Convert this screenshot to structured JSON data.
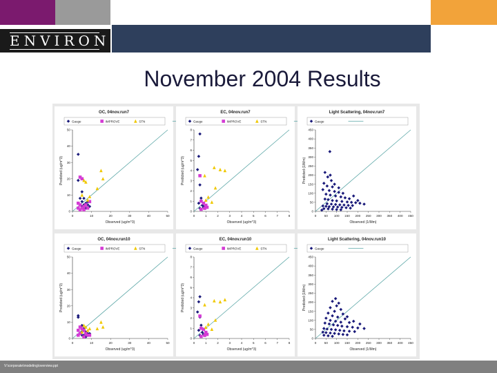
{
  "slide": {
    "logo": "ENVIRON",
    "title": "November 2004 Results",
    "footer": "V:\\corporate\\modeling\\overview.ppt"
  },
  "colors": {
    "gauge": "#1a1a7a",
    "improve": "#d43bd4",
    "stn": "#f0c800",
    "one_to_one": "#5aa6a6"
  },
  "chart_data": [
    {
      "type": "scatter",
      "title": "OC, 04nov.run7",
      "xlabel": "Observed (ug/m^3)",
      "ylabel": "Predicted (ug/m^3)",
      "xlim": [
        0,
        50
      ],
      "ylim": [
        0,
        50
      ],
      "xticks": [
        0,
        10,
        20,
        30,
        40,
        50
      ],
      "yticks": [
        0,
        10,
        20,
        30,
        40,
        50
      ],
      "legend_position": "top",
      "series": [
        {
          "name": "Gauge",
          "marker": "diamond",
          "color": "#1a1a7a",
          "points": [
            [
              3,
              35
            ],
            [
              3,
              19
            ],
            [
              5,
              12
            ],
            [
              4,
              8
            ],
            [
              6,
              8
            ],
            [
              5,
              6
            ],
            [
              7,
              5
            ],
            [
              8,
              4
            ],
            [
              5,
              3
            ],
            [
              6,
              2
            ],
            [
              7,
              2
            ],
            [
              9,
              3
            ],
            [
              8,
              6
            ],
            [
              4,
              4
            ],
            [
              6,
              4
            ]
          ]
        },
        {
          "name": "IMPROVE",
          "marker": "square",
          "color": "#d43bd4",
          "points": [
            [
              4,
              21
            ],
            [
              5,
              20
            ],
            [
              3,
              5
            ],
            [
              4,
              4
            ],
            [
              6,
              3
            ],
            [
              5,
              2
            ],
            [
              7,
              4
            ],
            [
              8,
              2
            ],
            [
              3,
              2
            ],
            [
              6,
              1
            ],
            [
              9,
              6
            ],
            [
              4,
              1
            ]
          ]
        },
        {
          "name": "STN",
          "marker": "triangle",
          "color": "#f0c800",
          "points": [
            [
              15,
              25
            ],
            [
              16,
              20
            ],
            [
              13,
              14
            ],
            [
              6,
              19
            ],
            [
              7,
              18
            ],
            [
              9,
              9
            ],
            [
              8,
              7
            ],
            [
              5,
              10
            ]
          ]
        }
      ],
      "one_to_one": true
    },
    {
      "type": "scatter",
      "title": "EC, 04nov.run7",
      "xlabel": "Observed (ug/m^3)",
      "ylabel": "Predicted (ug/m^3)",
      "xlim": [
        0,
        8
      ],
      "ylim": [
        0,
        8
      ],
      "xticks": [
        0,
        1,
        2,
        3,
        4,
        5,
        6,
        7,
        8
      ],
      "yticks": [
        0,
        1,
        2,
        3,
        4,
        5,
        6,
        7,
        8
      ],
      "legend_position": "top",
      "series": [
        {
          "name": "Gauge",
          "marker": "diamond",
          "color": "#1a1a7a",
          "points": [
            [
              0.5,
              7.6
            ],
            [
              0.4,
              5.4
            ],
            [
              0.3,
              4.1
            ],
            [
              0.5,
              2.6
            ],
            [
              0.6,
              1.3
            ],
            [
              0.4,
              0.8
            ],
            [
              0.7,
              0.6
            ],
            [
              0.8,
              0.4
            ],
            [
              0.5,
              0.3
            ],
            [
              0.9,
              0.5
            ]
          ]
        },
        {
          "name": "IMPROVE",
          "marker": "square",
          "color": "#d43bd4",
          "points": [
            [
              0.5,
              3.5
            ],
            [
              0.6,
              1.0
            ],
            [
              0.8,
              0.8
            ],
            [
              1.0,
              0.6
            ],
            [
              0.9,
              0.3
            ],
            [
              1.1,
              0.4
            ],
            [
              0.6,
              0.2
            ]
          ]
        },
        {
          "name": "STN",
          "marker": "triangle",
          "color": "#f0c800",
          "points": [
            [
              1.7,
              4.3
            ],
            [
              2.2,
              4.1
            ],
            [
              2.6,
              4.0
            ],
            [
              0.9,
              3.5
            ],
            [
              1.8,
              2.3
            ],
            [
              1.2,
              1.4
            ],
            [
              1.0,
              1.1
            ],
            [
              1.5,
              0.9
            ]
          ]
        }
      ],
      "one_to_one": true
    },
    {
      "type": "scatter",
      "title": "Light Scattering, 04nov.run7",
      "xlabel": "Observed (1/Mm)",
      "ylabel": "Predicted (1/Mm)",
      "xlim": [
        0,
        450
      ],
      "ylim": [
        0,
        450
      ],
      "xticks": [
        0,
        50,
        100,
        150,
        200,
        250,
        300,
        350,
        400,
        450
      ],
      "yticks": [
        0,
        50,
        100,
        150,
        200,
        250,
        300,
        350,
        400,
        450
      ],
      "legend_position": "top",
      "series": [
        {
          "name": "Gauge",
          "marker": "diamond",
          "color": "#1a1a7a",
          "points": [
            [
              68,
              330
            ],
            [
              45,
              215
            ],
            [
              58,
              190
            ],
            [
              75,
              170
            ],
            [
              40,
              155
            ],
            [
              55,
              140
            ],
            [
              80,
              135
            ],
            [
              35,
              120
            ],
            [
              65,
              115
            ],
            [
              90,
              110
            ],
            [
              110,
              105
            ],
            [
              130,
              100
            ],
            [
              50,
              95
            ],
            [
              70,
              90
            ],
            [
              95,
              85
            ],
            [
              120,
              80
            ],
            [
              140,
              75
            ],
            [
              160,
              70
            ],
            [
              45,
              68
            ],
            [
              60,
              65
            ],
            [
              80,
              60
            ],
            [
              100,
              58
            ],
            [
              125,
              55
            ],
            [
              150,
              52
            ],
            [
              170,
              50
            ],
            [
              190,
              48
            ],
            [
              210,
              45
            ],
            [
              55,
              42
            ],
            [
              75,
              40
            ],
            [
              95,
              38
            ],
            [
              115,
              36
            ],
            [
              135,
              35
            ],
            [
              155,
              33
            ],
            [
              175,
              32
            ],
            [
              35,
              30
            ],
            [
              50,
              28
            ],
            [
              65,
              26
            ],
            [
              85,
              25
            ],
            [
              105,
              24
            ],
            [
              125,
              22
            ],
            [
              145,
              20
            ],
            [
              165,
              18
            ],
            [
              40,
              15
            ],
            [
              60,
              14
            ],
            [
              80,
              12
            ],
            [
              100,
              10
            ],
            [
              120,
              9
            ],
            [
              30,
              7
            ],
            [
              200,
              60
            ],
            [
              230,
              40
            ],
            [
              180,
              85
            ],
            [
              110,
              130
            ],
            [
              90,
              150
            ],
            [
              70,
              200
            ]
          ]
        }
      ],
      "one_to_one": true
    },
    {
      "type": "scatter",
      "title": "OC, 04nov.run10",
      "xlabel": "Observed (ug/m^3)",
      "ylabel": "Predicted (ug/m^3)",
      "xlim": [
        0,
        50
      ],
      "ylim": [
        0,
        50
      ],
      "xticks": [
        0,
        10,
        20,
        30,
        40,
        50
      ],
      "yticks": [
        0,
        10,
        20,
        30,
        40,
        50
      ],
      "legend_position": "top",
      "series": [
        {
          "name": "Gauge",
          "marker": "diamond",
          "color": "#1a1a7a",
          "points": [
            [
              3,
              14
            ],
            [
              3,
              13
            ],
            [
              5,
              8
            ],
            [
              4,
              7
            ],
            [
              6,
              6
            ],
            [
              5,
              4
            ],
            [
              7,
              4
            ],
            [
              8,
              3
            ],
            [
              5,
              2
            ],
            [
              6,
              2
            ],
            [
              7,
              1
            ],
            [
              9,
              3
            ]
          ]
        },
        {
          "name": "IMPROVE",
          "marker": "square",
          "color": "#d43bd4",
          "points": [
            [
              4,
              7
            ],
            [
              5,
              6
            ],
            [
              3,
              5
            ],
            [
              6,
              5
            ],
            [
              4,
              3
            ],
            [
              7,
              3
            ],
            [
              8,
              2
            ],
            [
              3,
              2
            ],
            [
              6,
              1
            ],
            [
              9,
              2
            ]
          ]
        },
        {
          "name": "STN",
          "marker": "triangle",
          "color": "#f0c800",
          "points": [
            [
              15,
              10
            ],
            [
              16,
              7
            ],
            [
              13,
              6
            ],
            [
              6,
              8
            ],
            [
              7,
              7
            ],
            [
              9,
              6
            ],
            [
              8,
              5
            ],
            [
              5,
              4
            ]
          ]
        }
      ],
      "one_to_one": true
    },
    {
      "type": "scatter",
      "title": "EC, 04nov.run10",
      "xlabel": "Observed (ug/m^3)",
      "ylabel": "Predicted (ug/m^3)",
      "xlim": [
        0,
        8
      ],
      "ylim": [
        0,
        8
      ],
      "xticks": [
        0,
        1,
        2,
        3,
        4,
        5,
        6,
        7,
        8
      ],
      "yticks": [
        0,
        1,
        2,
        3,
        4,
        5,
        6,
        7,
        8
      ],
      "legend_position": "top",
      "series": [
        {
          "name": "Gauge",
          "marker": "diamond",
          "color": "#1a1a7a",
          "points": [
            [
              0.5,
              4.1
            ],
            [
              0.4,
              3.6
            ],
            [
              0.3,
              2.6
            ],
            [
              0.5,
              2.1
            ],
            [
              0.6,
              1.3
            ],
            [
              0.4,
              0.8
            ],
            [
              0.7,
              0.6
            ],
            [
              0.8,
              0.4
            ],
            [
              0.5,
              0.3
            ]
          ]
        },
        {
          "name": "IMPROVE",
          "marker": "square",
          "color": "#d43bd4",
          "points": [
            [
              0.5,
              2.2
            ],
            [
              0.6,
              1.0
            ],
            [
              0.8,
              0.9
            ],
            [
              1.0,
              0.6
            ],
            [
              0.9,
              0.3
            ],
            [
              1.1,
              0.4
            ],
            [
              0.6,
              0.2
            ]
          ]
        },
        {
          "name": "STN",
          "marker": "triangle",
          "color": "#f0c800",
          "points": [
            [
              1.7,
              3.7
            ],
            [
              2.2,
              3.6
            ],
            [
              2.6,
              3.8
            ],
            [
              0.9,
              3.3
            ],
            [
              1.8,
              1.8
            ],
            [
              1.2,
              1.4
            ],
            [
              1.0,
              1.1
            ],
            [
              1.5,
              0.9
            ]
          ]
        }
      ],
      "one_to_one": true
    },
    {
      "type": "scatter",
      "title": "Light Scattering, 04nov.run10",
      "xlabel": "Observed (1/Mm)",
      "ylabel": "Predicted (1/Mm)",
      "xlim": [
        0,
        450
      ],
      "ylim": [
        0,
        450
      ],
      "xticks": [
        0,
        50,
        100,
        150,
        200,
        250,
        300,
        350,
        400,
        450
      ],
      "yticks": [
        0,
        50,
        100,
        150,
        200,
        250,
        300,
        350,
        400,
        450
      ],
      "legend_position": "top",
      "series": [
        {
          "name": "Gauge",
          "marker": "diamond",
          "color": "#1a1a7a",
          "points": [
            [
              95,
              220
            ],
            [
              80,
              205
            ],
            [
              110,
              195
            ],
            [
              100,
              180
            ],
            [
              70,
              170
            ],
            [
              120,
              160
            ],
            [
              90,
              150
            ],
            [
              60,
              140
            ],
            [
              130,
              135
            ],
            [
              80,
              125
            ],
            [
              105,
              118
            ],
            [
              50,
              112
            ],
            [
              140,
              108
            ],
            [
              70,
              100
            ],
            [
              95,
              95
            ],
            [
              120,
              90
            ],
            [
              160,
              88
            ],
            [
              45,
              85
            ],
            [
              65,
              80
            ],
            [
              85,
              75
            ],
            [
              105,
              72
            ],
            [
              125,
              68
            ],
            [
              150,
              65
            ],
            [
              175,
              62
            ],
            [
              200,
              58
            ],
            [
              40,
              55
            ],
            [
              55,
              52
            ],
            [
              75,
              50
            ],
            [
              95,
              48
            ],
            [
              115,
              45
            ],
            [
              135,
              42
            ],
            [
              160,
              40
            ],
            [
              185,
              38
            ],
            [
              35,
              35
            ],
            [
              50,
              32
            ],
            [
              70,
              30
            ],
            [
              90,
              28
            ],
            [
              110,
              25
            ],
            [
              130,
              22
            ],
            [
              150,
              20
            ],
            [
              40,
              18
            ],
            [
              60,
              15
            ],
            [
              80,
              12
            ],
            [
              230,
              55
            ],
            [
              210,
              80
            ],
            [
              180,
              95
            ],
            [
              150,
              120
            ]
          ]
        }
      ],
      "one_to_one": true
    }
  ]
}
